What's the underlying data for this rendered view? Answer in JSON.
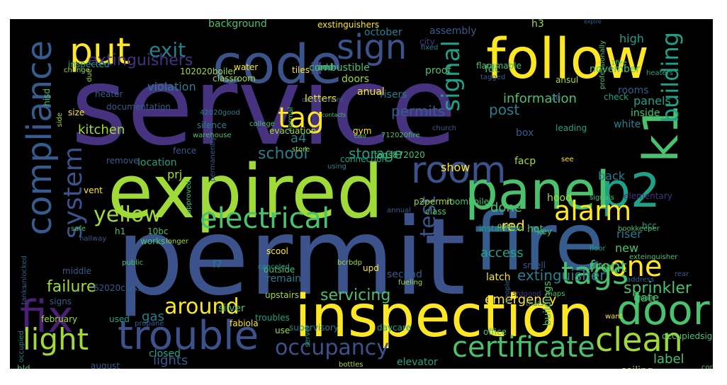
{
  "background": "#000000",
  "palette": {
    "purple": "#46327e",
    "violet": "#482173",
    "blue": "#365c8d",
    "slate": "#3b528b",
    "teal": "#277f8e",
    "green": "#1fa187",
    "lime": "#4ac16d",
    "yellowgreen": "#a0da39",
    "yellow": "#fde725"
  },
  "words": [
    {
      "text": "service",
      "color": "#46327e"
    },
    {
      "text": "permit",
      "color": "#3b528b"
    },
    {
      "text": "inspection",
      "color": "#fde725"
    },
    {
      "text": "expired",
      "color": "#a0da39"
    },
    {
      "text": "fire",
      "color": "#365c8d"
    },
    {
      "text": "code",
      "color": "#3b528b"
    },
    {
      "text": "follow",
      "color": "#fde725"
    },
    {
      "text": "panel",
      "color": "#4ac16d"
    },
    {
      "text": "compliance",
      "color": "#365c8d"
    },
    {
      "text": "trouble",
      "color": "#3b528b"
    },
    {
      "text": "fix",
      "color": "#482173"
    },
    {
      "text": "door",
      "color": "#4ac16d"
    },
    {
      "text": "p2",
      "color": "#1fa187"
    },
    {
      "text": "k1",
      "color": "#4ac16d"
    },
    {
      "text": "put",
      "color": "#fde725"
    },
    {
      "text": "sign",
      "color": "#3b528b"
    },
    {
      "text": "room",
      "color": "#3b528b"
    },
    {
      "text": "tags",
      "color": "#4ac16d"
    },
    {
      "text": "clean",
      "color": "#a0da39"
    },
    {
      "text": "light",
      "color": "#a0da39"
    },
    {
      "text": "system",
      "color": "#3b528b"
    },
    {
      "text": "electrical",
      "color": "#4ac16d"
    },
    {
      "text": "certificate",
      "color": "#4ac16d"
    },
    {
      "text": "signal",
      "color": "#1fa187"
    },
    {
      "text": "alarm",
      "color": "#fde725"
    },
    {
      "text": "occupancy",
      "color": "#3b528b"
    },
    {
      "text": "tag",
      "color": "#fde725"
    },
    {
      "text": "building",
      "color": "#1fa187"
    },
    {
      "text": "test",
      "color": "#3b528b"
    },
    {
      "text": "around",
      "color": "#fde725"
    },
    {
      "text": "one",
      "color": "#fde725"
    },
    {
      "text": "yellow",
      "color": "#a0da39"
    },
    {
      "text": "exit",
      "color": "#277f8e"
    },
    {
      "text": "extinguishers",
      "color": "#46327e"
    },
    {
      "text": "servicing",
      "color": "#4ac16d"
    },
    {
      "text": "school",
      "color": "#277f8e"
    },
    {
      "text": "failure",
      "color": "#a0da39"
    },
    {
      "text": "sprinkler",
      "color": "#4ac16d"
    },
    {
      "text": "front",
      "color": "#4ac16d"
    },
    {
      "text": "storage",
      "color": "#1fa187"
    },
    {
      "text": "emergency",
      "color": "#fde725"
    },
    {
      "text": "extinguisher",
      "color": "#277f8e"
    },
    {
      "text": "a4",
      "color": "#277f8e"
    },
    {
      "text": "post",
      "color": "#277f8e"
    },
    {
      "text": "show",
      "color": "#fde725"
    },
    {
      "text": "lights",
      "color": "#365c8d"
    },
    {
      "text": "information",
      "color": "#4ac16d"
    },
    {
      "text": "permits",
      "color": "#365c8d"
    },
    {
      "text": "gas",
      "color": "#277f8e"
    },
    {
      "text": "done",
      "color": "#4ac16d"
    },
    {
      "text": "access",
      "color": "#1fa187"
    },
    {
      "text": "red",
      "color": "#fde725"
    },
    {
      "text": "high",
      "color": "#1fa187"
    },
    {
      "text": "violation",
      "color": "#277f8e"
    },
    {
      "text": "kitchen",
      "color": "#a0da39"
    },
    {
      "text": "prj",
      "color": "#a0da39"
    },
    {
      "text": "back",
      "color": "#277f8e"
    },
    {
      "text": "panels",
      "color": "#1fa187"
    },
    {
      "text": "riser",
      "color": "#277f8e"
    },
    {
      "text": "gate",
      "color": "#4ac16d"
    },
    {
      "text": "label",
      "color": "#4ac16d"
    },
    {
      "text": "new",
      "color": "#4ac16d"
    },
    {
      "text": "background",
      "color": "#4ac16d"
    },
    {
      "text": "exstinguishers",
      "color": "#fde725"
    },
    {
      "text": "october",
      "color": "#277f8e"
    },
    {
      "text": "assembly",
      "color": "#365c8d"
    },
    {
      "text": "add",
      "color": "#4ac16d"
    },
    {
      "text": "h3",
      "color": "#a0da39"
    },
    {
      "text": "combustible",
      "color": "#4ac16d"
    },
    {
      "text": "proof",
      "color": "#4ac16d"
    },
    {
      "text": "fdc",
      "color": "#4ac16d"
    },
    {
      "text": "november",
      "color": "#4ac16d"
    },
    {
      "text": "rooms",
      "color": "#365c8d"
    },
    {
      "text": "inside",
      "color": "#4ac16d"
    },
    {
      "text": "risers",
      "color": "#277f8e"
    },
    {
      "text": "anual",
      "color": "#fde725"
    },
    {
      "text": "letters",
      "color": "#fde725"
    },
    {
      "text": "doors",
      "color": "#a0da39"
    },
    {
      "text": "box",
      "color": "#365c8d"
    },
    {
      "text": "white",
      "color": "#277f8e"
    },
    {
      "text": "facp",
      "color": "#a0da39"
    },
    {
      "text": "location",
      "color": "#1fa187"
    },
    {
      "text": "remove",
      "color": "#365c8d"
    },
    {
      "text": "vent",
      "color": "#fde725"
    },
    {
      "text": "hood",
      "color": "#a0da39"
    },
    {
      "text": "hot",
      "color": "#4ac16d"
    },
    {
      "text": "key",
      "color": "#4ac16d"
    },
    {
      "text": "f7",
      "color": "#277f8e"
    },
    {
      "text": "outside",
      "color": "#4ac16d"
    },
    {
      "text": "remain",
      "color": "#277f8e"
    },
    {
      "text": "second",
      "color": "#365c8d"
    },
    {
      "text": "latch",
      "color": "#fde725"
    },
    {
      "text": "bring",
      "color": "#4ac16d"
    },
    {
      "text": "silver",
      "color": "#4ac16d"
    },
    {
      "text": "upstairs",
      "color": "#a0da39"
    },
    {
      "text": "supervisory",
      "color": "#277f8e"
    },
    {
      "text": "daycare",
      "color": "#1fa187"
    },
    {
      "text": "elevator",
      "color": "#1fa187"
    },
    {
      "text": "buildings",
      "color": "#4ac16d"
    },
    {
      "text": "closed",
      "color": "#1fa187"
    },
    {
      "text": "august",
      "color": "#365c8d"
    },
    {
      "text": "ceiling",
      "color": "#a0da39"
    },
    {
      "text": "unlocked",
      "color": "#365c8d"
    },
    {
      "text": "tanks",
      "color": "#365c8d"
    },
    {
      "text": "signs",
      "color": "#365c8d"
    },
    {
      "text": "february",
      "color": "#a0da39"
    },
    {
      "text": "used",
      "color": "#1fa187"
    },
    {
      "text": "propane",
      "color": "#365c8d"
    },
    {
      "text": "fabiola",
      "color": "#fde725"
    },
    {
      "text": "troubles",
      "color": "#1fa187"
    },
    {
      "text": "use",
      "color": "#a0da39"
    },
    {
      "text": "server",
      "color": "#1fa187"
    },
    {
      "text": "office",
      "color": "#4ac16d"
    },
    {
      "text": "want",
      "color": "#fde725"
    },
    {
      "text": "occupiedsign",
      "color": "#4ac16d"
    },
    {
      "text": "cornejo",
      "color": "#4ac16d"
    },
    {
      "text": "bld",
      "color": "#4ac16d"
    },
    {
      "text": "bottles",
      "color": "#a0da39"
    },
    {
      "text": "occupied",
      "color": "#277f8e"
    },
    {
      "text": "inspected",
      "color": "#1fa187"
    },
    {
      "text": "change",
      "color": "#a0da39"
    },
    {
      "text": "102020boiler",
      "color": "#a0da39"
    },
    {
      "text": "water",
      "color": "#fde725"
    },
    {
      "text": "tiles",
      "color": "#fde725"
    },
    {
      "text": "classroom",
      "color": "#a0da39"
    },
    {
      "text": "due",
      "color": "#a0da39"
    },
    {
      "text": "heater",
      "color": "#365c8d"
    },
    {
      "text": "documentation",
      "color": "#365c8d"
    },
    {
      "text": "size",
      "color": "#fde725"
    },
    {
      "text": "hisd",
      "color": "#4ac16d"
    },
    {
      "text": "42020good",
      "color": "#277f8e"
    },
    {
      "text": "silence",
      "color": "#277f8e"
    },
    {
      "text": "warehouse",
      "color": "#4ac16d"
    },
    {
      "text": "fence",
      "color": "#365c8d"
    },
    {
      "text": "side",
      "color": "#a0da39"
    },
    {
      "text": "permanently",
      "color": "#365c8d"
    },
    {
      "text": "college",
      "color": "#4ac16d"
    },
    {
      "text": "normal",
      "color": "#4ac16d"
    },
    {
      "text": "evacuation",
      "color": "#a0da39"
    },
    {
      "text": "store",
      "color": "#a0da39"
    },
    {
      "text": "using",
      "color": "#277f8e"
    },
    {
      "text": "connection",
      "color": "#1fa187"
    },
    {
      "text": "gym",
      "color": "#fde725"
    },
    {
      "text": "tags872020",
      "color": "#4ac16d"
    },
    {
      "text": "712020fire",
      "color": "#4ac16d"
    },
    {
      "text": "conf",
      "color": "#4ac16d"
    },
    {
      "text": "contacts",
      "color": "#4ac16d"
    },
    {
      "text": "department",
      "color": "#365c8d"
    },
    {
      "text": "fixed",
      "color": "#277f8e"
    },
    {
      "text": "city",
      "color": "#46327e"
    },
    {
      "text": "flammable",
      "color": "#4ac16d"
    },
    {
      "text": "tagged",
      "color": "#365c8d"
    },
    {
      "text": "ansul",
      "color": "#a0da39"
    },
    {
      "text": "1fire",
      "color": "#4ac16d"
    },
    {
      "text": "heaters",
      "color": "#1fa187"
    },
    {
      "text": "professionally",
      "color": "#4ac16d"
    },
    {
      "text": "expire",
      "color": "#365c8d"
    },
    {
      "text": "check",
      "color": "#1fa187"
    },
    {
      "text": "za",
      "color": "#365c8d"
    },
    {
      "text": "leading",
      "color": "#1fa187"
    },
    {
      "text": "see",
      "color": "#fde725"
    },
    {
      "text": "church",
      "color": "#365c8d"
    },
    {
      "text": "elementary",
      "color": "#46327e"
    },
    {
      "text": "signals",
      "color": "#4ac16d"
    },
    {
      "text": "hcc",
      "color": "#1fa187"
    },
    {
      "text": "bookkeeper",
      "color": "#4ac16d"
    },
    {
      "text": "floor",
      "color": "#1fa187"
    },
    {
      "text": "exteinguisher",
      "color": "#4ac16d"
    },
    {
      "text": "rear",
      "color": "#365c8d"
    },
    {
      "text": "address",
      "color": "#365c8d"
    },
    {
      "text": "main",
      "color": "#4ac16d"
    },
    {
      "text": "maps",
      "color": "#4ac16d"
    },
    {
      "text": "3rdgood",
      "color": "#46327e"
    },
    {
      "text": "thats",
      "color": "#277f8e"
    },
    {
      "text": "people",
      "color": "#365c8d"
    },
    {
      "text": "smell",
      "color": "#365c8d"
    },
    {
      "text": "upd",
      "color": "#fde725"
    },
    {
      "text": "fueling",
      "color": "#a0da39"
    },
    {
      "text": "instalation",
      "color": "#1fa187"
    },
    {
      "text": "class",
      "color": "#4ac16d"
    },
    {
      "text": "open",
      "color": "#a0da39"
    },
    {
      "text": "roomboiler",
      "color": "#4ac16d"
    },
    {
      "text": "p2permit",
      "color": "#a0da39"
    },
    {
      "text": "annual",
      "color": "#365c8d"
    },
    {
      "text": "bcrbdp",
      "color": "#a0da39"
    },
    {
      "text": "scool",
      "color": "#fde725"
    },
    {
      "text": "canceled",
      "color": "#1fa187"
    },
    {
      "text": "62020class",
      "color": "#365c8d"
    },
    {
      "text": "public",
      "color": "#4ac16d"
    },
    {
      "text": "middle",
      "color": "#365c8d"
    },
    {
      "text": "safe",
      "color": "#4ac16d"
    },
    {
      "text": "hallway",
      "color": "#365c8d"
    },
    {
      "text": "h1",
      "color": "#4ac16d"
    },
    {
      "text": "10bc",
      "color": "#4ac16d"
    },
    {
      "text": "longer",
      "color": "#a0da39"
    },
    {
      "text": "approved",
      "color": "#4ac16d"
    },
    {
      "text": "works",
      "color": "#4ac16d"
    },
    {
      "text": "102020sprinkler",
      "color": "#365c8d"
    },
    {
      "text": "o",
      "color": "#a0da39"
    }
  ]
}
